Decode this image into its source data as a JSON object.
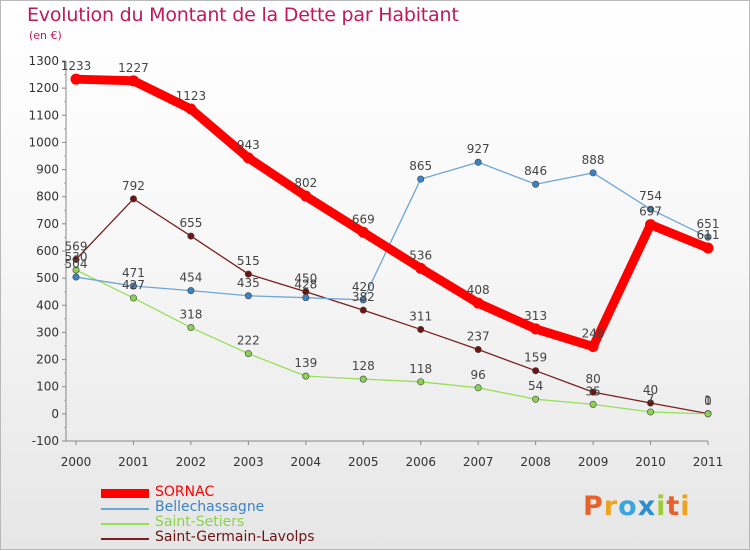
{
  "title": "Evolution du Montant de la Dette par Habitant",
  "unit_label": "(en €)",
  "logo_text": "Proxiti",
  "chart_data": {
    "type": "line",
    "categories": [
      "2000",
      "2001",
      "2002",
      "2003",
      "2004",
      "2005",
      "2006",
      "2007",
      "2008",
      "2009",
      "2010",
      "2011"
    ],
    "ylim": [
      -100,
      1300
    ],
    "yticks": [
      -100,
      0,
      100,
      200,
      300,
      400,
      500,
      600,
      700,
      800,
      900,
      1000,
      1100,
      1200,
      1300
    ],
    "grid": false,
    "legend_position": "bottom-left",
    "series": [
      {
        "name": "SORNAC",
        "color": "#ff0000",
        "marker": "#ff0000",
        "values": [
          1233,
          1227,
          1123,
          943,
          802,
          669,
          536,
          408,
          313,
          248,
          697,
          611
        ]
      },
      {
        "name": "Bellechassagne",
        "color": "#6ea6d4",
        "marker": "#3b82c4",
        "values": [
          504,
          471,
          454,
          435,
          428,
          420,
          865,
          927,
          846,
          888,
          754,
          651
        ]
      },
      {
        "name": "Saint-Setiers",
        "color": "#98e05a",
        "marker": "#8cd14f",
        "values": [
          530,
          427,
          318,
          222,
          139,
          128,
          118,
          96,
          54,
          35,
          7,
          0
        ]
      },
      {
        "name": "Saint-Germain-Lavolps",
        "color": "#7a1f1f",
        "marker": "#6b1414",
        "values": [
          569,
          792,
          655,
          515,
          450,
          382,
          311,
          237,
          159,
          80,
          40,
          1
        ]
      }
    ],
    "data_labels": [
      [
        "1233",
        "1227",
        "1123",
        "943",
        "802",
        "669",
        "536",
        "408",
        "313",
        "248",
        "697",
        "611"
      ],
      [
        "504",
        "471",
        "454",
        "435",
        "428",
        "420",
        "865",
        "927",
        "846",
        "888",
        "754",
        "651"
      ],
      [
        "530",
        "427",
        "318",
        "222",
        "139",
        "128",
        "118",
        "96",
        "54",
        "35",
        "7",
        "0"
      ],
      [
        "569",
        "792",
        "655",
        "515",
        "450",
        "382",
        "311",
        "237",
        "159",
        "80",
        "40",
        "1"
      ]
    ]
  }
}
